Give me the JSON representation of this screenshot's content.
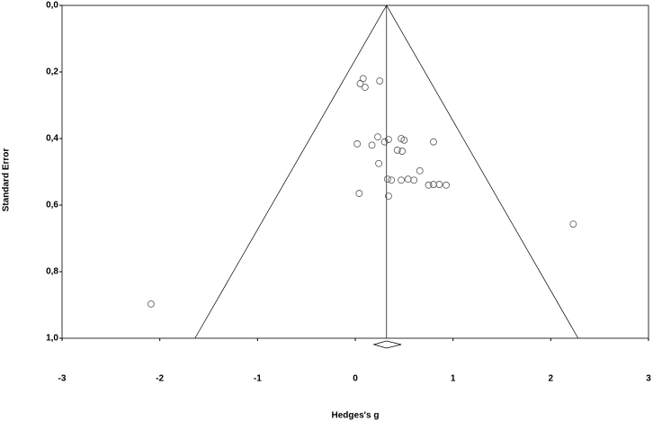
{
  "chart_data": {
    "type": "scatter",
    "x_label": "Hedges's g",
    "y_label": "Standard Error",
    "x": [
      0.08,
      0.05,
      0.1,
      0.25,
      0.23,
      0.02,
      0.17,
      0.3,
      0.34,
      0.47,
      0.5,
      0.8,
      0.43,
      0.48,
      0.24,
      0.66,
      0.33,
      0.37,
      0.47,
      0.54,
      0.6,
      0.75,
      0.8,
      0.86,
      0.93,
      0.04,
      0.34,
      2.23,
      -2.09
    ],
    "values": [
      0.22,
      0.235,
      0.246,
      0.227,
      0.395,
      0.416,
      0.42,
      0.41,
      0.403,
      0.4,
      0.405,
      0.41,
      0.435,
      0.438,
      0.475,
      0.497,
      0.522,
      0.525,
      0.525,
      0.522,
      0.525,
      0.54,
      0.538,
      0.538,
      0.54,
      0.565,
      0.573,
      0.657,
      0.897
    ],
    "color": "#555555",
    "funnel": {
      "x": [
        -1.64,
        0.32,
        2.28
      ],
      "y": [
        1,
        0,
        1
      ]
    },
    "summary": {
      "estimate": 0.32,
      "ci": [
        0.19,
        0.47
      ]
    },
    "xlim": [
      -3,
      3
    ],
    "xticks": [
      -3,
      -2,
      -1,
      0,
      1,
      2,
      3
    ],
    "ylim": [
      1,
      0
    ],
    "yticks": [
      {
        "value": 0,
        "label": "0,0"
      },
      {
        "value": 0.2,
        "label": "0,2"
      },
      {
        "value": 0.4,
        "label": "0,4"
      },
      {
        "value": 0.6,
        "label": "0,6"
      },
      {
        "value": 0.8,
        "label": "0,8"
      },
      {
        "value": 1,
        "label": "1,0"
      }
    ]
  }
}
